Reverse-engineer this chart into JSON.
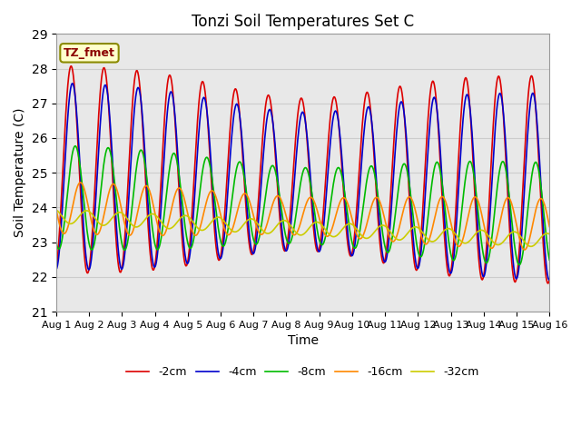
{
  "title": "Tonzi Soil Temperatures Set C",
  "ylabel": "Soil Temperature (C)",
  "xlabel": "Time",
  "ylim": [
    21.0,
    29.0
  ],
  "xlim": [
    0,
    15
  ],
  "yticks": [
    21.0,
    22.0,
    23.0,
    24.0,
    25.0,
    26.0,
    27.0,
    28.0,
    29.0
  ],
  "xtick_labels": [
    "Aug 1",
    "Aug 2",
    "Aug 3",
    "Aug 4",
    "Aug 5",
    "Aug 6",
    "Aug 7",
    "Aug 8",
    "Aug 9",
    "Aug 10",
    "Aug 11",
    "Aug 12",
    "Aug 13",
    "Aug 14",
    "Aug 15",
    "Aug 16"
  ],
  "annotation": "TZ_fmet",
  "bg_color": "#e8e8e8",
  "lines": [
    {
      "label": "-2cm",
      "color": "#dd0000",
      "lw": 1.2
    },
    {
      "label": "-4cm",
      "color": "#0000cc",
      "lw": 1.2
    },
    {
      "label": "-8cm",
      "color": "#00bb00",
      "lw": 1.2
    },
    {
      "label": "-16cm",
      "color": "#ff8800",
      "lw": 1.2
    },
    {
      "label": "-32cm",
      "color": "#cccc00",
      "lw": 1.2
    }
  ]
}
